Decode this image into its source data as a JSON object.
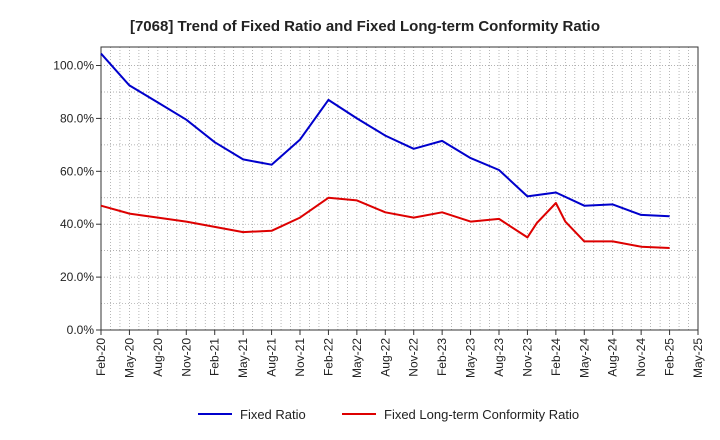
{
  "chart_data": {
    "type": "line",
    "title": "[7068]  Trend of Fixed Ratio and Fixed Long-term Conformity Ratio",
    "xlabel": "",
    "ylabel": "",
    "x_ticks": [
      "Feb-20",
      "May-20",
      "Aug-20",
      "Nov-20",
      "Feb-21",
      "May-21",
      "Aug-21",
      "Nov-21",
      "Feb-22",
      "May-22",
      "Aug-22",
      "Nov-22",
      "Feb-23",
      "May-23",
      "Aug-23",
      "Nov-23",
      "Feb-24",
      "May-24",
      "Aug-24",
      "Nov-24",
      "Feb-25",
      "May-25"
    ],
    "y_ticks": [
      "0.0%",
      "20.0%",
      "40.0%",
      "60.0%",
      "80.0%",
      "100.0%"
    ],
    "ylim": [
      0,
      100
    ],
    "grid": true,
    "legend_position": "bottom",
    "colors": {
      "fixed_ratio": "#0000cc",
      "long_term": "#dd0000"
    },
    "series": [
      {
        "name": "Fixed Ratio",
        "color": "#0000cc",
        "points": [
          [
            "Feb-20",
            104.5
          ],
          [
            "May-20",
            92.5
          ],
          [
            "Aug-20",
            86.0
          ],
          [
            "Nov-20",
            79.5
          ],
          [
            "Feb-21",
            71.0
          ],
          [
            "May-21",
            64.5
          ],
          [
            "Aug-21",
            62.5
          ],
          [
            "Nov-21",
            72.0
          ],
          [
            "Feb-22",
            87.0
          ],
          [
            "May-22",
            80.0
          ],
          [
            "Aug-22",
            73.5
          ],
          [
            "Nov-22",
            68.5
          ],
          [
            "Feb-23",
            71.5
          ],
          [
            "May-23",
            65.0
          ],
          [
            "Aug-23",
            60.5
          ],
          [
            "Nov-23",
            50.5
          ],
          [
            "Feb-24",
            52.0
          ],
          [
            "May-24",
            47.0
          ],
          [
            "Aug-24",
            47.5
          ],
          [
            "Nov-24",
            43.5
          ],
          [
            "Feb-25",
            43.0
          ]
        ]
      },
      {
        "name": "Fixed Long-term Conformity Ratio",
        "color": "#dd0000",
        "points": [
          [
            "Feb-20",
            47.0
          ],
          [
            "May-20",
            44.0
          ],
          [
            "Aug-20",
            42.5
          ],
          [
            "Nov-20",
            41.0
          ],
          [
            "Feb-21",
            39.0
          ],
          [
            "May-21",
            37.0
          ],
          [
            "Aug-21",
            37.5
          ],
          [
            "Nov-21",
            42.5
          ],
          [
            "Feb-22",
            50.0
          ],
          [
            "May-22",
            49.0
          ],
          [
            "Aug-22",
            44.5
          ],
          [
            "Nov-22",
            42.5
          ],
          [
            "Feb-23",
            44.5
          ],
          [
            "May-23",
            41.0
          ],
          [
            "Aug-23",
            42.0
          ],
          [
            "Nov-23",
            35.0
          ],
          [
            "Dec-23",
            40.5
          ],
          [
            "Feb-24",
            48.0
          ],
          [
            "Mar-24",
            41.0
          ],
          [
            "May-24",
            33.5
          ],
          [
            "Aug-24",
            33.5
          ],
          [
            "Nov-24",
            31.5
          ],
          [
            "Feb-25",
            31.0
          ]
        ]
      }
    ]
  }
}
